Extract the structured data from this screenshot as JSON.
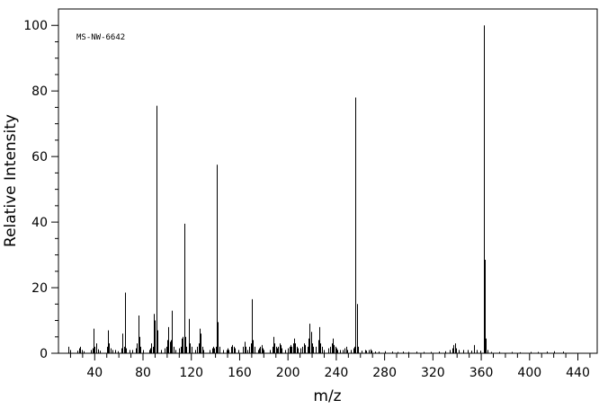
{
  "chart_data": {
    "type": "bar",
    "annotation": "MS-NW-6642",
    "xlabel": "m/z",
    "ylabel": "Relative Intensity",
    "xlim": [
      10,
      456
    ],
    "ylim": [
      0,
      105
    ],
    "x_ticks": [
      40,
      80,
      120,
      160,
      200,
      240,
      280,
      320,
      360,
      400,
      440
    ],
    "y_ticks": [
      0,
      20,
      40,
      60,
      80,
      100
    ],
    "grid": false,
    "legend": "none",
    "peaks": [
      [
        18,
        2
      ],
      [
        20,
        1
      ],
      [
        26,
        0.8
      ],
      [
        27,
        1.5
      ],
      [
        28,
        2
      ],
      [
        29,
        1
      ],
      [
        31,
        0.6
      ],
      [
        37,
        1
      ],
      [
        38,
        1.5
      ],
      [
        39,
        7.5
      ],
      [
        40,
        2
      ],
      [
        41,
        3
      ],
      [
        43,
        1.2
      ],
      [
        44,
        0.8
      ],
      [
        50,
        2
      ],
      [
        51,
        7
      ],
      [
        52,
        3
      ],
      [
        53,
        1.5
      ],
      [
        55,
        1
      ],
      [
        57,
        1
      ],
      [
        59,
        0.6
      ],
      [
        62,
        1.5
      ],
      [
        63,
        6
      ],
      [
        64,
        2
      ],
      [
        65,
        18.5
      ],
      [
        66,
        1.5
      ],
      [
        69,
        1
      ],
      [
        71,
        1
      ],
      [
        74,
        1.5
      ],
      [
        75,
        3
      ],
      [
        76,
        11.5
      ],
      [
        77,
        5
      ],
      [
        78,
        2
      ],
      [
        80,
        1
      ],
      [
        85,
        1
      ],
      [
        86,
        1.5
      ],
      [
        87,
        3
      ],
      [
        88,
        2
      ],
      [
        89,
        12
      ],
      [
        90,
        10
      ],
      [
        91,
        75.5
      ],
      [
        92,
        7
      ],
      [
        95,
        1
      ],
      [
        98,
        1.5
      ],
      [
        99,
        2
      ],
      [
        100,
        4
      ],
      [
        101,
        8
      ],
      [
        102,
        3.5
      ],
      [
        103,
        4
      ],
      [
        104,
        13
      ],
      [
        105,
        2
      ],
      [
        107,
        1
      ],
      [
        110,
        1.5
      ],
      [
        111,
        2
      ],
      [
        112,
        4.5
      ],
      [
        113,
        5
      ],
      [
        114,
        39.5
      ],
      [
        115,
        5
      ],
      [
        116,
        2
      ],
      [
        118,
        10.5
      ],
      [
        119,
        3
      ],
      [
        120,
        2
      ],
      [
        123,
        1
      ],
      [
        125,
        2
      ],
      [
        126,
        3
      ],
      [
        127,
        7.5
      ],
      [
        128,
        6
      ],
      [
        129,
        2
      ],
      [
        130,
        1
      ],
      [
        135,
        1
      ],
      [
        137,
        1.5
      ],
      [
        138,
        2
      ],
      [
        139,
        1.5
      ],
      [
        140,
        2
      ],
      [
        141,
        57.5
      ],
      [
        142,
        9.5
      ],
      [
        143,
        2
      ],
      [
        146,
        1
      ],
      [
        149,
        1
      ],
      [
        150,
        1.5
      ],
      [
        151,
        1
      ],
      [
        153,
        2
      ],
      [
        154,
        2.5
      ],
      [
        155,
        2
      ],
      [
        156,
        1.5
      ],
      [
        159,
        1
      ],
      [
        163,
        2
      ],
      [
        164,
        3.5
      ],
      [
        165,
        2
      ],
      [
        166,
        1
      ],
      [
        168,
        2
      ],
      [
        169,
        3
      ],
      [
        170,
        16.5
      ],
      [
        171,
        4
      ],
      [
        172,
        2
      ],
      [
        175,
        1
      ],
      [
        176,
        1.5
      ],
      [
        177,
        2
      ],
      [
        178,
        2.5
      ],
      [
        179,
        1.5
      ],
      [
        180,
        1
      ],
      [
        185,
        1
      ],
      [
        187,
        2
      ],
      [
        188,
        5
      ],
      [
        189,
        3
      ],
      [
        190,
        2
      ],
      [
        191,
        1.5
      ],
      [
        192,
        2
      ],
      [
        193,
        3
      ],
      [
        194,
        2.5
      ],
      [
        195,
        1.5
      ],
      [
        198,
        1
      ],
      [
        200,
        1.5
      ],
      [
        201,
        2
      ],
      [
        202,
        2.5
      ],
      [
        203,
        2
      ],
      [
        204,
        3
      ],
      [
        205,
        4.5
      ],
      [
        206,
        3
      ],
      [
        207,
        2
      ],
      [
        208,
        1.5
      ],
      [
        210,
        1.5
      ],
      [
        212,
        2
      ],
      [
        213,
        3
      ],
      [
        214,
        2.5
      ],
      [
        216,
        2
      ],
      [
        217,
        4.5
      ],
      [
        218,
        9
      ],
      [
        219,
        6.5
      ],
      [
        220,
        3
      ],
      [
        221,
        2
      ],
      [
        223,
        2
      ],
      [
        225,
        4
      ],
      [
        226,
        8
      ],
      [
        227,
        3
      ],
      [
        228,
        2
      ],
      [
        230,
        1
      ],
      [
        233,
        1.5
      ],
      [
        235,
        2
      ],
      [
        236,
        3
      ],
      [
        237,
        4.5
      ],
      [
        238,
        2.5
      ],
      [
        239,
        2
      ],
      [
        240,
        1.5
      ],
      [
        241,
        1
      ],
      [
        243,
        1
      ],
      [
        245,
        1
      ],
      [
        247,
        1.5
      ],
      [
        248,
        2
      ],
      [
        249,
        1
      ],
      [
        252,
        1
      ],
      [
        254,
        1.5
      ],
      [
        255,
        2
      ],
      [
        256,
        78
      ],
      [
        257,
        15
      ],
      [
        258,
        2
      ],
      [
        261,
        0.8
      ],
      [
        264,
        1
      ],
      [
        265,
        0.8
      ],
      [
        267,
        1
      ],
      [
        268,
        1.2
      ],
      [
        269,
        0.8
      ],
      [
        272,
        0.5
      ],
      [
        275,
        0.5
      ],
      [
        280,
        0.6
      ],
      [
        286,
        0.5
      ],
      [
        291,
        0.4
      ],
      [
        295,
        0.5
      ],
      [
        300,
        0.4
      ],
      [
        306,
        0.5
      ],
      [
        312,
        0.4
      ],
      [
        318,
        0.4
      ],
      [
        325,
        0.5
      ],
      [
        330,
        0.6
      ],
      [
        334,
        1
      ],
      [
        336,
        1.5
      ],
      [
        337,
        2.5
      ],
      [
        338,
        3
      ],
      [
        339,
        1.5
      ],
      [
        341,
        1
      ],
      [
        345,
        1
      ],
      [
        349,
        1
      ],
      [
        352,
        0.8
      ],
      [
        354,
        2.5
      ],
      [
        356,
        1
      ],
      [
        359,
        0.8
      ],
      [
        362,
        100
      ],
      [
        363,
        28.5
      ],
      [
        364,
        4.5
      ],
      [
        365,
        1
      ],
      [
        368,
        0.4
      ],
      [
        375,
        0.4
      ],
      [
        385,
        0.4
      ],
      [
        392,
        0.3
      ],
      [
        401,
        0.4
      ],
      [
        407,
        0.4
      ],
      [
        414,
        0.5
      ],
      [
        420,
        0.6
      ],
      [
        428,
        0.5
      ]
    ]
  }
}
